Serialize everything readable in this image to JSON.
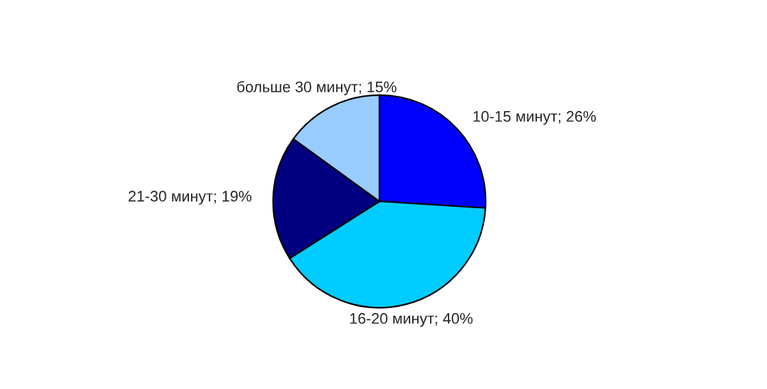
{
  "chart_data": {
    "type": "pie",
    "categories": [
      "10-15 минут",
      "16-20 минут",
      "21-30 минут",
      "больше 30 минут"
    ],
    "values": [
      26,
      40,
      19,
      15
    ],
    "value_labels": [
      "26%",
      "40%",
      "19%",
      "15%"
    ],
    "colors": [
      "#0000ff",
      "#00ccff",
      "#000080",
      "#99ccff"
    ],
    "legend": false
  }
}
